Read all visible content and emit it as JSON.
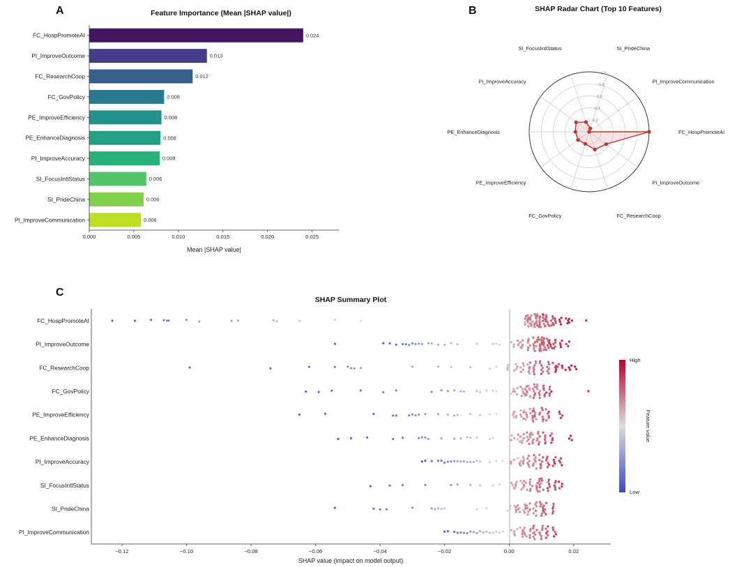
{
  "chart_data": [
    {
      "panel": "A",
      "type": "bar",
      "orientation": "horizontal",
      "title": "Feature Importance (Mean |SHAP value|)",
      "xlabel": "Mean |SHAP value|",
      "ylabel": "",
      "xlim": [
        0,
        0.028
      ],
      "xticks": [
        "0.000",
        "0.005",
        "0.010",
        "0.015",
        "0.020",
        "0.025"
      ],
      "categories": [
        "FC_HospPromoteAI",
        "PI_ImproveOutcome",
        "FC_ResearchCoop",
        "FC_GovPolicy",
        "PE_ImproveEfficiency",
        "PE_EnhanceDiagnosis",
        "PI_ImproveAccuracy",
        "SI_FocusIntlStatus",
        "SI_PrideChina",
        "PI_ImproveCommunication"
      ],
      "values": [
        0.024,
        0.0132,
        0.0116,
        0.0084,
        0.0081,
        0.008,
        0.0079,
        0.0064,
        0.0061,
        0.0058
      ],
      "value_labels": [
        "0.024",
        "0.013",
        "0.012",
        "0.008",
        "0.008",
        "0.008",
        "0.008",
        "0.006",
        "0.006",
        "0.006"
      ],
      "colors": [
        "#44165e",
        "#453d8a",
        "#375f8e",
        "#2a7a8e",
        "#23918c",
        "#22a185",
        "#2bb07a",
        "#52c469",
        "#7fd24a",
        "#bddf26"
      ]
    },
    {
      "panel": "B",
      "type": "radar",
      "title": "SHAP Radar Chart (Top 10 Features)",
      "axes": [
        "FC_HospPromoteAI",
        "PI_ImproveOutcome",
        "FC_ResearchCoop",
        "FC_GovPolicy",
        "PE_ImproveEfficiency",
        "PE_EnhanceDiagnosis",
        "PI_ImproveAccuracy",
        "SI_FocusIntlStatus",
        "SI_PrideChina",
        "PI_ImproveCommunication"
      ],
      "values": [
        1.0,
        0.35,
        0.31,
        0.21,
        0.23,
        0.23,
        0.27,
        0.17,
        0.06,
        0.0
      ],
      "rlim": [
        0,
        1.0
      ],
      "radial_ticks": [
        "0.2",
        "0.4",
        "0.6",
        "0.8",
        "1.0"
      ],
      "line_color": "#c03030",
      "fill_color": "#e8b4b4"
    },
    {
      "panel": "C",
      "type": "scatter",
      "subtype": "beeswarm",
      "title": "SHAP Summary Plot",
      "xlabel": "SHAP value (impact on model output)",
      "xlim": [
        -0.1295,
        0.0315
      ],
      "xticks": [
        "−0.12",
        "−0.10",
        "−0.08",
        "−0.06",
        "−0.04",
        "−0.02",
        "0.00",
        "0.02"
      ],
      "features": [
        "FC_HospPromoteAI",
        "PI_ImproveOutcome",
        "FC_ResearchCoop",
        "FC_GovPolicy",
        "PE_ImproveEfficiency",
        "PE_EnhanceDiagnosis",
        "PI_ImproveAccuracy",
        "SI_FocusIntlStatus",
        "SI_PrideChina",
        "PI_ImproveCommunication"
      ],
      "low_points": [
        [
          -0.123,
          -0.116,
          -0.111,
          -0.107,
          -0.106,
          -0.1055,
          -0.1,
          -0.096,
          -0.086,
          -0.084,
          -0.073,
          -0.072,
          -0.065,
          -0.054,
          -0.046
        ],
        [
          -0.054,
          -0.039,
          -0.037,
          -0.035,
          -0.033,
          -0.032,
          -0.031,
          -0.03,
          -0.029,
          -0.028,
          -0.027,
          -0.025,
          -0.024,
          -0.022,
          -0.02,
          -0.018,
          -0.016,
          -0.01,
          -0.005,
          -0.004,
          -0.003
        ],
        [
          -0.099,
          -0.074,
          -0.062,
          -0.054,
          -0.05,
          -0.049,
          -0.048,
          -0.046,
          -0.03,
          -0.022,
          -0.018,
          -0.012,
          -0.006,
          -0.004
        ],
        [
          -0.063,
          -0.059,
          -0.055,
          -0.046,
          -0.039,
          -0.035,
          -0.024,
          -0.021,
          -0.019,
          -0.017,
          -0.015,
          -0.014,
          -0.01,
          -0.009,
          -0.007,
          -0.005,
          -0.004
        ],
        [
          -0.065,
          -0.057,
          -0.042,
          -0.036,
          -0.035,
          -0.031,
          -0.03,
          -0.029,
          -0.028,
          -0.026,
          -0.022,
          -0.019,
          -0.017,
          -0.016,
          -0.012,
          -0.009,
          -0.006,
          -0.004
        ],
        [
          -0.053,
          -0.049,
          -0.044,
          -0.036,
          -0.033,
          -0.028,
          -0.027,
          -0.026,
          -0.025,
          -0.021,
          -0.017,
          -0.015,
          -0.013,
          -0.012,
          -0.01,
          -0.006,
          -0.005
        ],
        [
          -0.027,
          -0.026,
          -0.024,
          -0.022,
          -0.021,
          -0.02,
          -0.019,
          -0.018,
          -0.017,
          -0.016,
          -0.015,
          -0.014,
          -0.013,
          -0.012,
          -0.011,
          -0.01,
          -0.009,
          -0.006,
          -0.004,
          -0.002
        ],
        [
          -0.043,
          -0.037,
          -0.033,
          -0.026,
          -0.018,
          -0.016,
          -0.012,
          -0.009,
          -0.005,
          -0.003
        ],
        [
          -0.054,
          -0.042,
          -0.04,
          -0.038,
          -0.03,
          -0.024,
          -0.023,
          -0.022,
          -0.021,
          -0.02,
          -0.01,
          -0.007
        ],
        [
          -0.02,
          -0.019,
          -0.017,
          -0.016,
          -0.015,
          -0.014,
          -0.013,
          -0.012,
          -0.011,
          -0.01,
          -0.009,
          -0.008,
          -0.007,
          -0.006,
          -0.005,
          -0.004,
          -0.003,
          -0.002
        ]
      ],
      "high_points": [
        [
          0.005,
          0.006,
          0.007,
          0.008,
          0.009,
          0.01,
          0.011,
          0.012,
          0.013,
          0.014,
          0.016,
          0.018,
          0.019,
          0.024
        ],
        [
          0.001,
          0.003,
          0.004,
          0.006,
          0.008,
          0.009,
          0.01,
          0.011,
          0.012,
          0.013,
          0.014,
          0.016,
          0.018
        ],
        [
          0.0,
          0.002,
          0.004,
          0.006,
          0.008,
          0.01,
          0.012,
          0.014,
          0.015,
          0.017,
          0.019,
          0.021
        ],
        [
          0.001,
          0.002,
          0.004,
          0.005,
          0.006,
          0.008,
          0.009,
          0.011,
          0.013,
          0.024
        ],
        [
          0.001,
          0.002,
          0.004,
          0.005,
          0.007,
          0.008,
          0.01,
          0.012,
          0.016
        ],
        [
          0.001,
          0.003,
          0.004,
          0.006,
          0.007,
          0.009,
          0.011,
          0.013,
          0.019
        ],
        [
          0.001,
          0.003,
          0.004,
          0.006,
          0.008,
          0.01,
          0.012,
          0.014,
          0.016
        ],
        [
          0.001,
          0.002,
          0.004,
          0.005,
          0.007,
          0.009,
          0.01,
          0.012,
          0.014,
          0.016
        ],
        [
          0.0,
          0.002,
          0.003,
          0.005,
          0.006,
          0.008,
          0.01,
          0.011,
          0.014
        ],
        [
          0.001,
          0.002,
          0.004,
          0.005,
          0.007,
          0.008,
          0.01,
          0.012,
          0.014
        ]
      ],
      "colorbar": {
        "label": "Feature value",
        "high": "High",
        "low": "Low",
        "colors": [
          "#3b4cc0",
          "#dddddd",
          "#b40426"
        ]
      }
    }
  ],
  "panel_letters": {
    "a": "A",
    "b": "B",
    "c": "C"
  }
}
